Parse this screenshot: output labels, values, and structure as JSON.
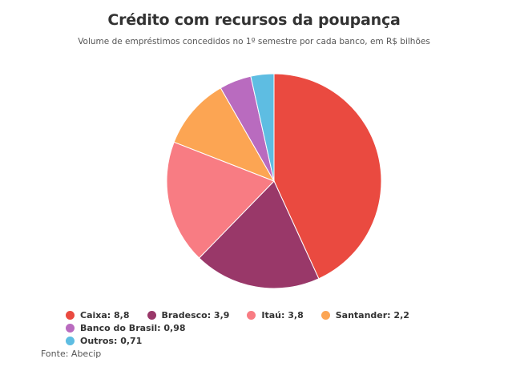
{
  "header": {
    "title": "Crédito com recursos da poupança",
    "subtitle": "Volume de empréstimos concedidos no 1º semestre por cada banco, em R$ bilhões"
  },
  "legend": {
    "items": [
      {
        "label": "Caixa: 8,8",
        "color": "#ea4a40"
      },
      {
        "label": "Bradesco: 3,9",
        "color": "#993869"
      },
      {
        "label": "Itaú: 3,8",
        "color": "#f87c83"
      },
      {
        "label": "Santander: 2,2",
        "color": "#fca553"
      },
      {
        "label": "Banco do Brasil: 0,98",
        "color": "#b96bbf"
      },
      {
        "label": "Outros: 0,71",
        "color": "#5ebde2"
      }
    ]
  },
  "footer": {
    "source": "Fonte: Abecip"
  },
  "chart_data": {
    "type": "pie",
    "title": "Crédito com recursos da poupança",
    "subtitle": "Volume de empréstimos concedidos no 1º semestre por cada banco, em R$ bilhões",
    "categories": [
      "Caixa",
      "Bradesco",
      "Itaú",
      "Santander",
      "Banco do Brasil",
      "Outros"
    ],
    "values": [
      8.8,
      3.9,
      3.8,
      2.2,
      0.98,
      0.71
    ],
    "colors": [
      "#ea4a40",
      "#993869",
      "#f87c83",
      "#fca553",
      "#b96bbf",
      "#5ebde2"
    ],
    "unit": "R$ bilhões",
    "legend_position": "bottom",
    "source": "Fonte: Abecip"
  }
}
